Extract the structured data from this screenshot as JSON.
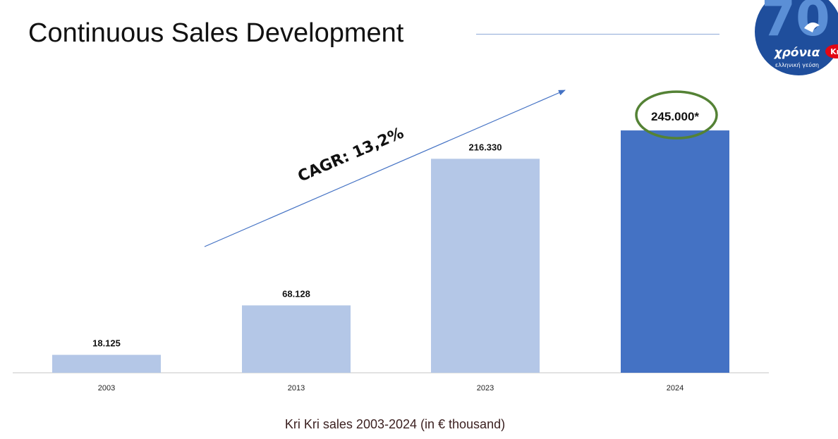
{
  "title": "Continuous Sales Development",
  "caption": "Kri Kri sales 2003-2024 (in € thousand)",
  "cagr_annotation": "CAGR: 13,2%",
  "logo": {
    "number": "70",
    "word": "χρόνια",
    "tagline": "ελληνική γεύση",
    "brand": "Kri"
  },
  "colors": {
    "light_bar": "#b4c7e7",
    "highlight_bar": "#4472c4",
    "circle": "#548235",
    "arrow": "#4472c4"
  },
  "chart_data": {
    "type": "bar",
    "title": "",
    "xlabel": "",
    "ylabel": "",
    "categories": [
      "2003",
      "2013",
      "2023",
      "2024"
    ],
    "values": [
      18125,
      68128,
      216330,
      245000
    ],
    "value_labels": [
      "18.125",
      "68.128",
      "216.330",
      "245.000*"
    ],
    "highlight_index": 3,
    "ylim": [
      0,
      270000
    ],
    "grid": false
  }
}
